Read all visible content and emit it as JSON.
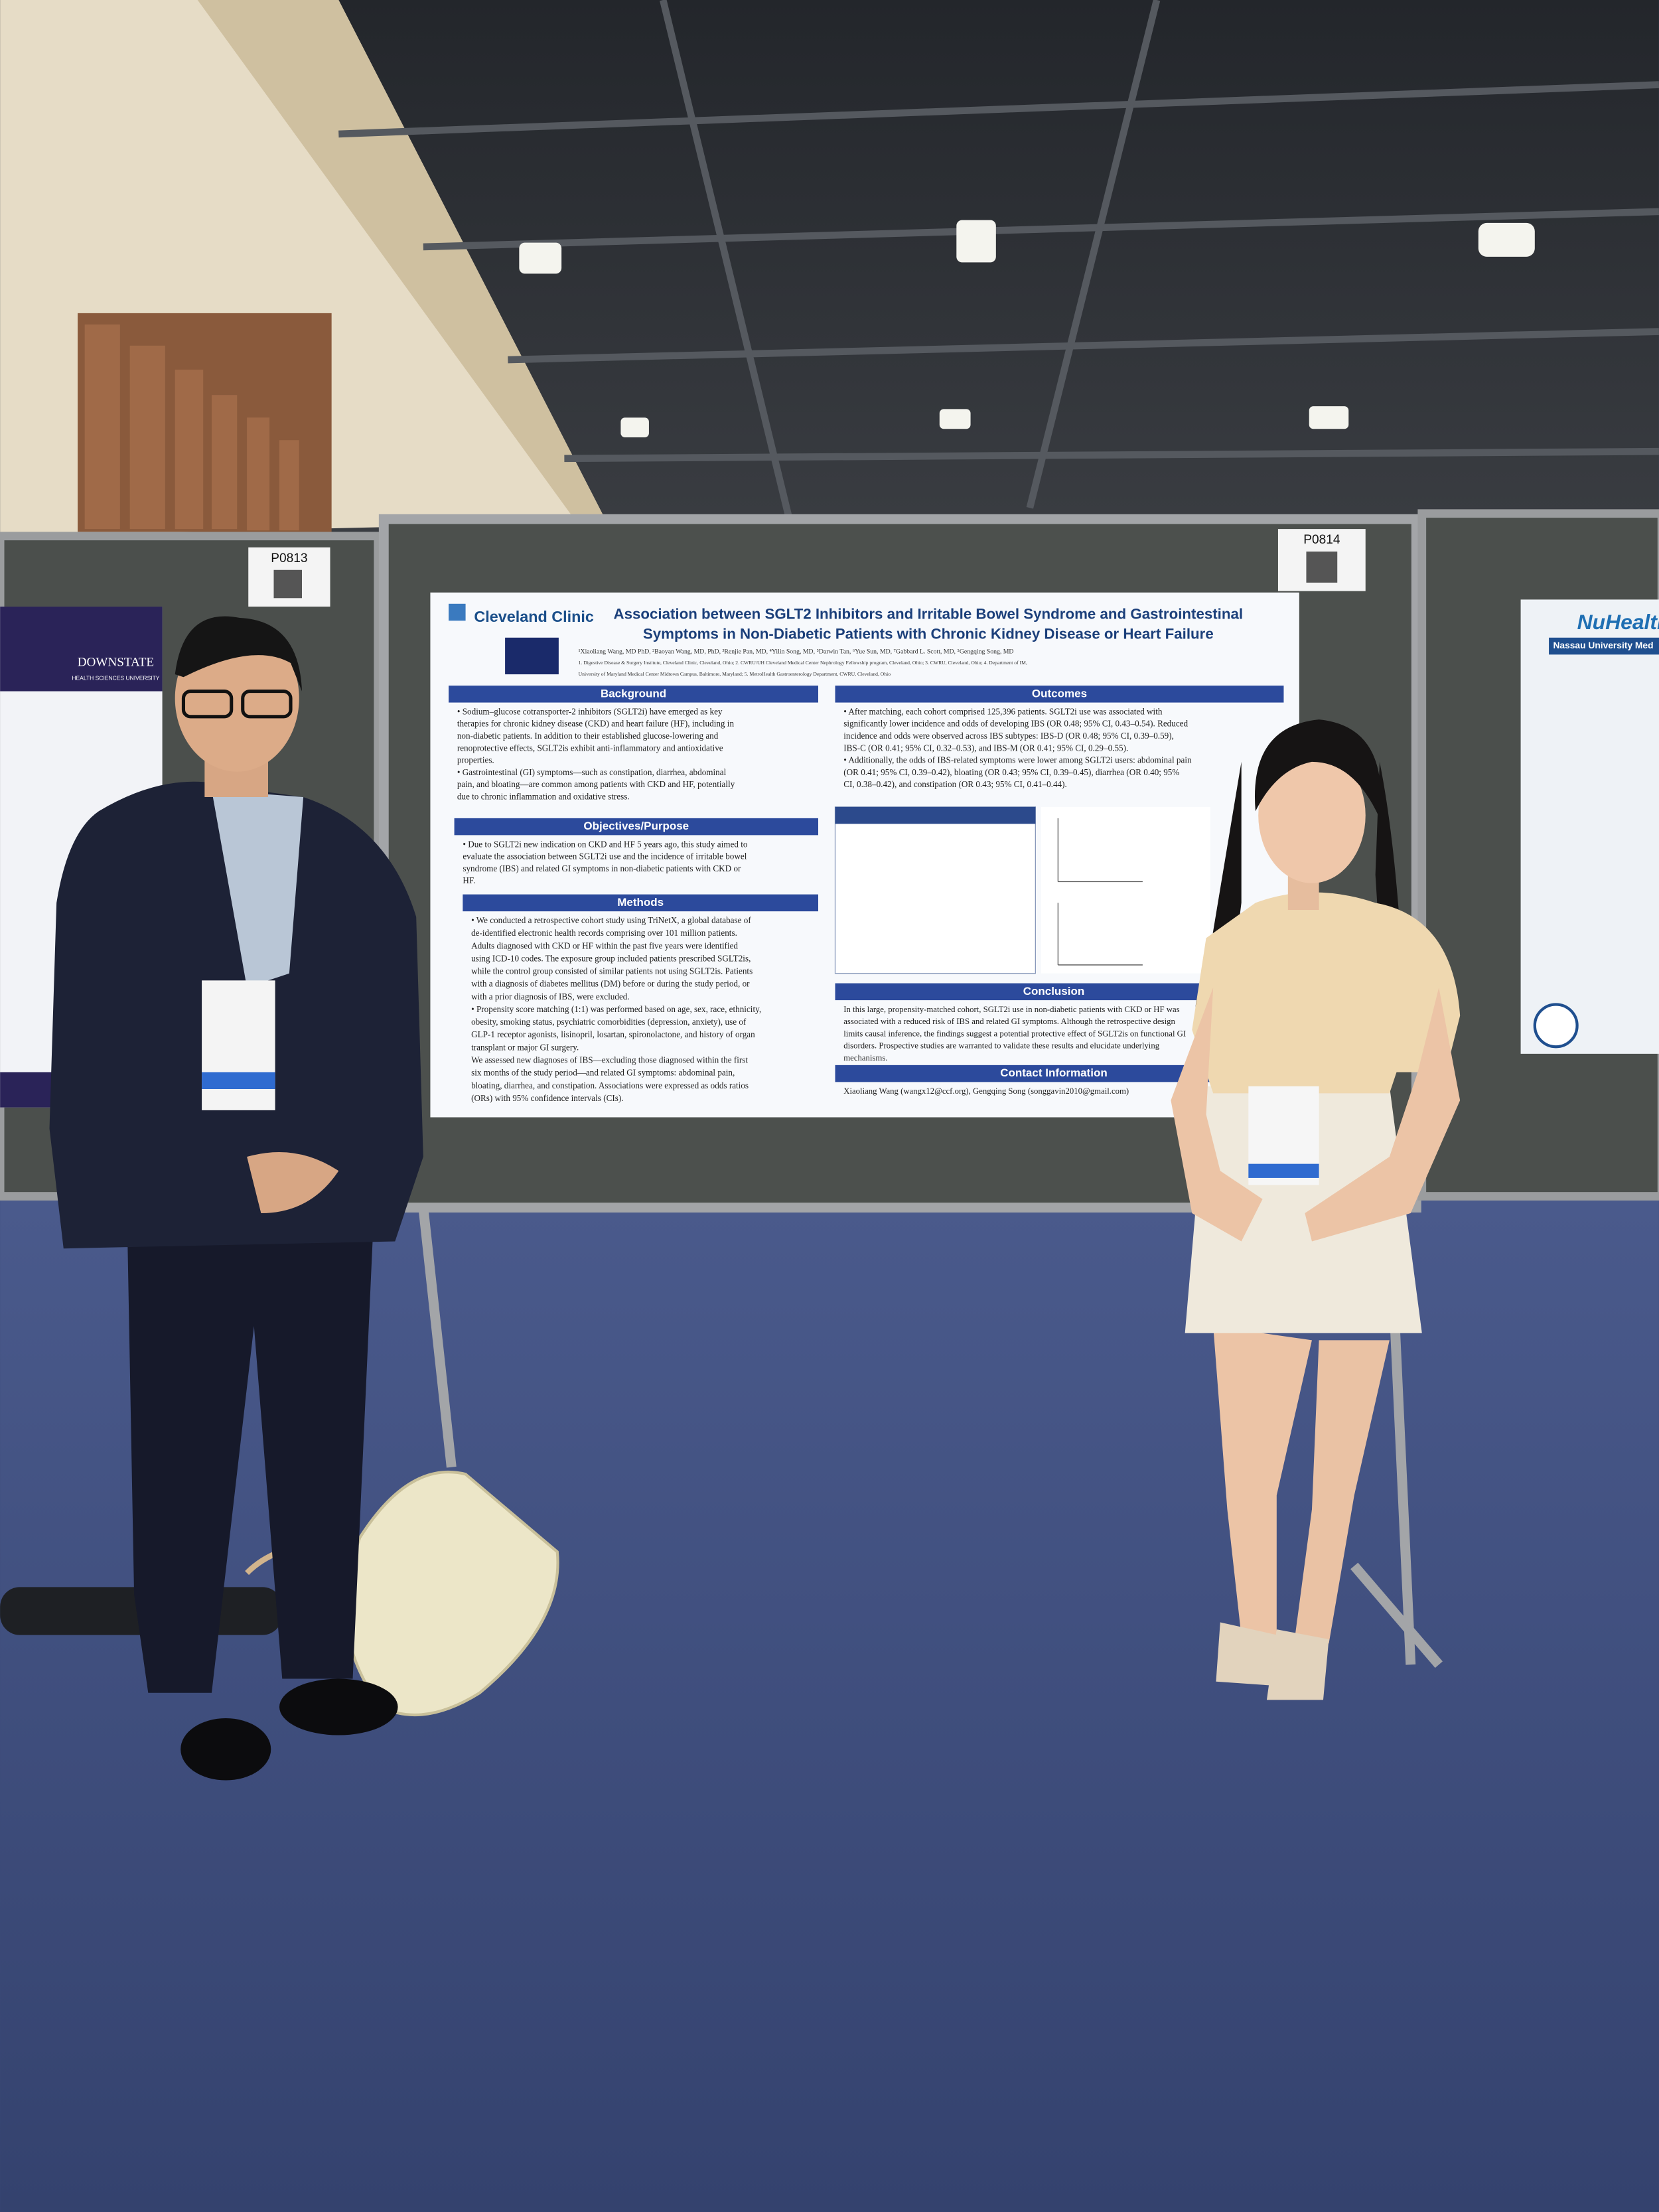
{
  "booths": [
    "P0813",
    "P0814"
  ],
  "left_poster": {
    "logo": "DOWNSTATE",
    "subtitle": "HEALTH SCIENCES UNIVERSITY"
  },
  "right_poster": {
    "logo": "NuHealth",
    "subtitle": "Nassau University Med"
  },
  "main_poster": {
    "logo": "Cleveland Clinic",
    "title_lines": [
      "Association between SGLT2 Inhibitors and Irritable Bowel Syndrome and Gastrointestinal",
      "Symptoms in Non-Diabetic Patients with Chronic Kidney Disease or Heart Failure"
    ],
    "authors": "¹Xiaoliang Wang, MD PhD, ²Baoyan Wang, MD, PhD, ³Renjie Pan, MD, ⁴Yilin Song, MD, ⁵Darwin Tan, ⁶Yue Sun, MD, ⁷Gabbard L. Scott, MD, ⁵Gengqing Song, MD",
    "affiliations": [
      "1. Digestive Disease & Surgery Institute, Cleveland Clinic, Cleveland, Ohio; 2. CWRU/UH Cleveland Medical Center Nephrology Fellowship program, Cleveland, Ohio; 3. CWRU, Cleveland, Ohio; 4. Department of IM,",
      "University of Maryland Medical Center Midtown Campus, Baltimore, Maryland; 5. MetroHealth Gastroenterology Department, CWRU, Cleveland, Ohio"
    ],
    "sections": [
      {
        "heading": "Background",
        "lines": [
          "• Sodium–glucose cotransporter-2 inhibitors (SGLT2i) have emerged as key",
          "therapies for chronic kidney disease (CKD) and heart failure (HF), including in",
          "non-diabetic patients. In addition to their established glucose-lowering and",
          "renoprotective effects, SGLT2is exhibit anti-inflammatory and antioxidative",
          "properties.",
          "• Gastrointestinal (GI) symptoms—such as constipation, diarrhea, abdominal",
          "pain, and bloating—are common among patients with CKD and HF, potentially",
          "due to chronic inflammation and oxidative stress."
        ]
      },
      {
        "heading": "Objectives/Purpose",
        "lines": [
          "• Due to SGLT2i new indication on CKD and HF 5 years ago, this study aimed to",
          "evaluate the association between SGLT2i use and the incidence of irritable bowel",
          "syndrome (IBS) and related GI symptoms in non-diabetic patients with CKD or",
          "HF."
        ]
      },
      {
        "heading": "Methods",
        "lines": [
          "• We conducted a retrospective cohort study using TriNetX, a global database of",
          "de-identified electronic health records comprising over 101 million patients.",
          "Adults diagnosed with CKD or HF within the past five years were identified",
          "using ICD-10 codes. The exposure group included patients prescribed SGLT2is,",
          "while the control group consisted of similar patients not using SGLT2is. Patients",
          "with a diagnosis of diabetes mellitus (DM) before or during the study period, or",
          "with a prior diagnosis of IBS, were excluded.",
          "• Propensity score matching (1:1) was performed based on age, sex, race, ethnicity,",
          "obesity, smoking status, psychiatric comorbidities (depression, anxiety), use of",
          "GLP-1 receptor agonists, lisinopril, losartan, spironolactone, and history of organ",
          "transplant or major GI surgery.",
          "We assessed new diagnoses of IBS—excluding those diagnosed within the first",
          "six months of the study period—and related GI symptoms: abdominal pain,",
          "bloating, diarrhea, and constipation. Associations were expressed as odds ratios",
          "(ORs) with 95% confidence intervals (CIs)."
        ]
      },
      {
        "heading": "Outcomes",
        "lines": [
          "• After matching, each cohort comprised 125,396 patients. SGLT2i use was associated with",
          "significantly lower incidence and odds of developing IBS (OR 0.48; 95% CI, 0.43–0.54). Reduced",
          "incidence and odds were observed across IBS subtypes: IBS-D (OR 0.48; 95% CI, 0.39–0.59),",
          "IBS-C (OR 0.41; 95% CI, 0.32–0.53), and IBS-M (OR 0.41; 95% CI, 0.29–0.55).",
          "• Additionally, the odds of IBS-related symptoms were lower among SGLT2i users: abdominal pain",
          "(OR 0.41; 95% CI, 0.39–0.42), bloating (OR 0.43; 95% CI, 0.39–0.45), diarrhea (OR 0.40; 95%",
          "CI, 0.38–0.42), and constipation (OR 0.43; 95% CI, 0.41–0.44)."
        ]
      },
      {
        "heading": "Conclusion",
        "lines": [
          "In this large, propensity-matched cohort, SGLT2i use in non-diabetic patients with CKD or HF was",
          "associated with a reduced risk of IBS and related GI symptoms. Although the retrospective design",
          "limits causal inference, the findings suggest a potential protective effect of SGLT2is on functional GI",
          "disorders. Prospective studies are warranted to validate these results and elucidate underlying",
          "mechanisms."
        ]
      },
      {
        "heading": "Contact Information",
        "lines": [
          "Xiaoliang Wang (wangx12@ccf.org), Gengqing Song (songgavin2010@gmail.com)"
        ]
      }
    ]
  }
}
